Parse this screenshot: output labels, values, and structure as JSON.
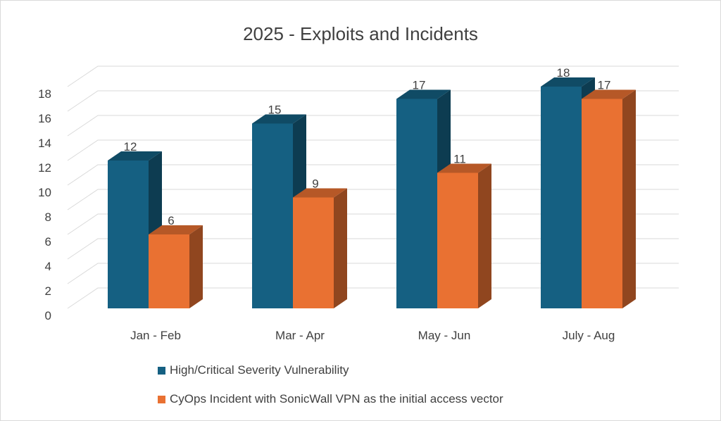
{
  "chart_data": {
    "type": "bar",
    "title": "2025 - Exploits and Incidents",
    "categories": [
      "Jan - Feb",
      "Mar - Apr",
      "May - Jun",
      "July - Aug"
    ],
    "series": [
      {
        "name": "High/Critical Severity Vulnerability",
        "values": [
          12,
          15,
          17,
          18
        ],
        "color": "#156082"
      },
      {
        "name": "CyOps Incident with SonicWall VPN as the initial access vector",
        "values": [
          6,
          9,
          11,
          17
        ],
        "color": "#e97132"
      }
    ],
    "ylim": [
      0,
      18
    ],
    "yticks": [
      0,
      2,
      4,
      6,
      8,
      10,
      12,
      14,
      16,
      18
    ],
    "grid": true,
    "style": "3d-clustered-column",
    "legend": "bottom"
  }
}
